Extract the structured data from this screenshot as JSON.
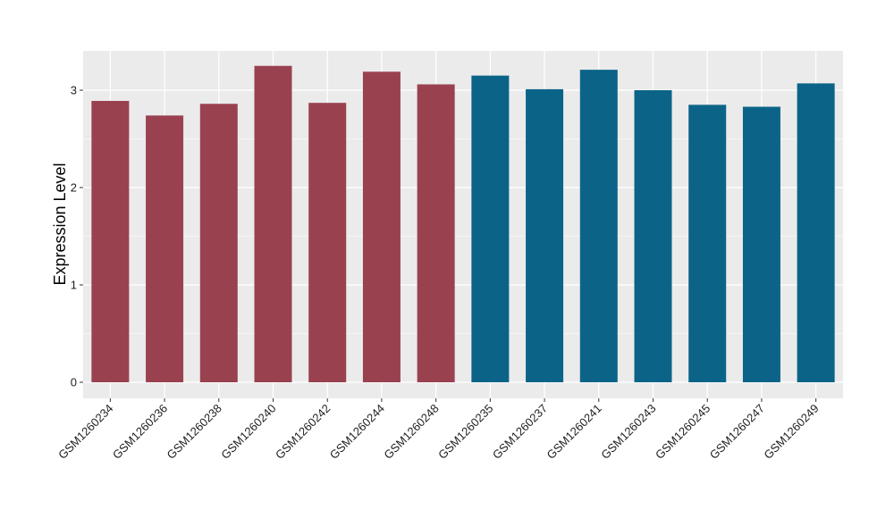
{
  "chart_data": {
    "type": "bar",
    "title": "",
    "xlabel": "",
    "ylabel": "Expression Level",
    "ylim": [
      0,
      3.4
    ],
    "yticks": [
      0,
      1,
      2,
      3
    ],
    "grid": true,
    "legend": "none",
    "background_color": "#ebebeb",
    "grid_color": "#ffffff",
    "categories": [
      "GSM1260234",
      "GSM1260236",
      "GSM1260238",
      "GSM1260240",
      "GSM1260242",
      "GSM1260244",
      "GSM1260248",
      "GSM1260235",
      "GSM1260237",
      "GSM1260241",
      "GSM1260243",
      "GSM1260245",
      "GSM1260247",
      "GSM1260249"
    ],
    "values": [
      2.89,
      2.74,
      2.86,
      3.25,
      2.87,
      3.19,
      3.06,
      3.15,
      3.01,
      3.21,
      3.0,
      2.85,
      2.83,
      3.07
    ],
    "bar_colors": [
      "#9a4150",
      "#9a4150",
      "#9a4150",
      "#9a4150",
      "#9a4150",
      "#9a4150",
      "#9a4150",
      "#0b6488",
      "#0b6488",
      "#0b6488",
      "#0b6488",
      "#0b6488",
      "#0b6488",
      "#0b6488"
    ]
  }
}
